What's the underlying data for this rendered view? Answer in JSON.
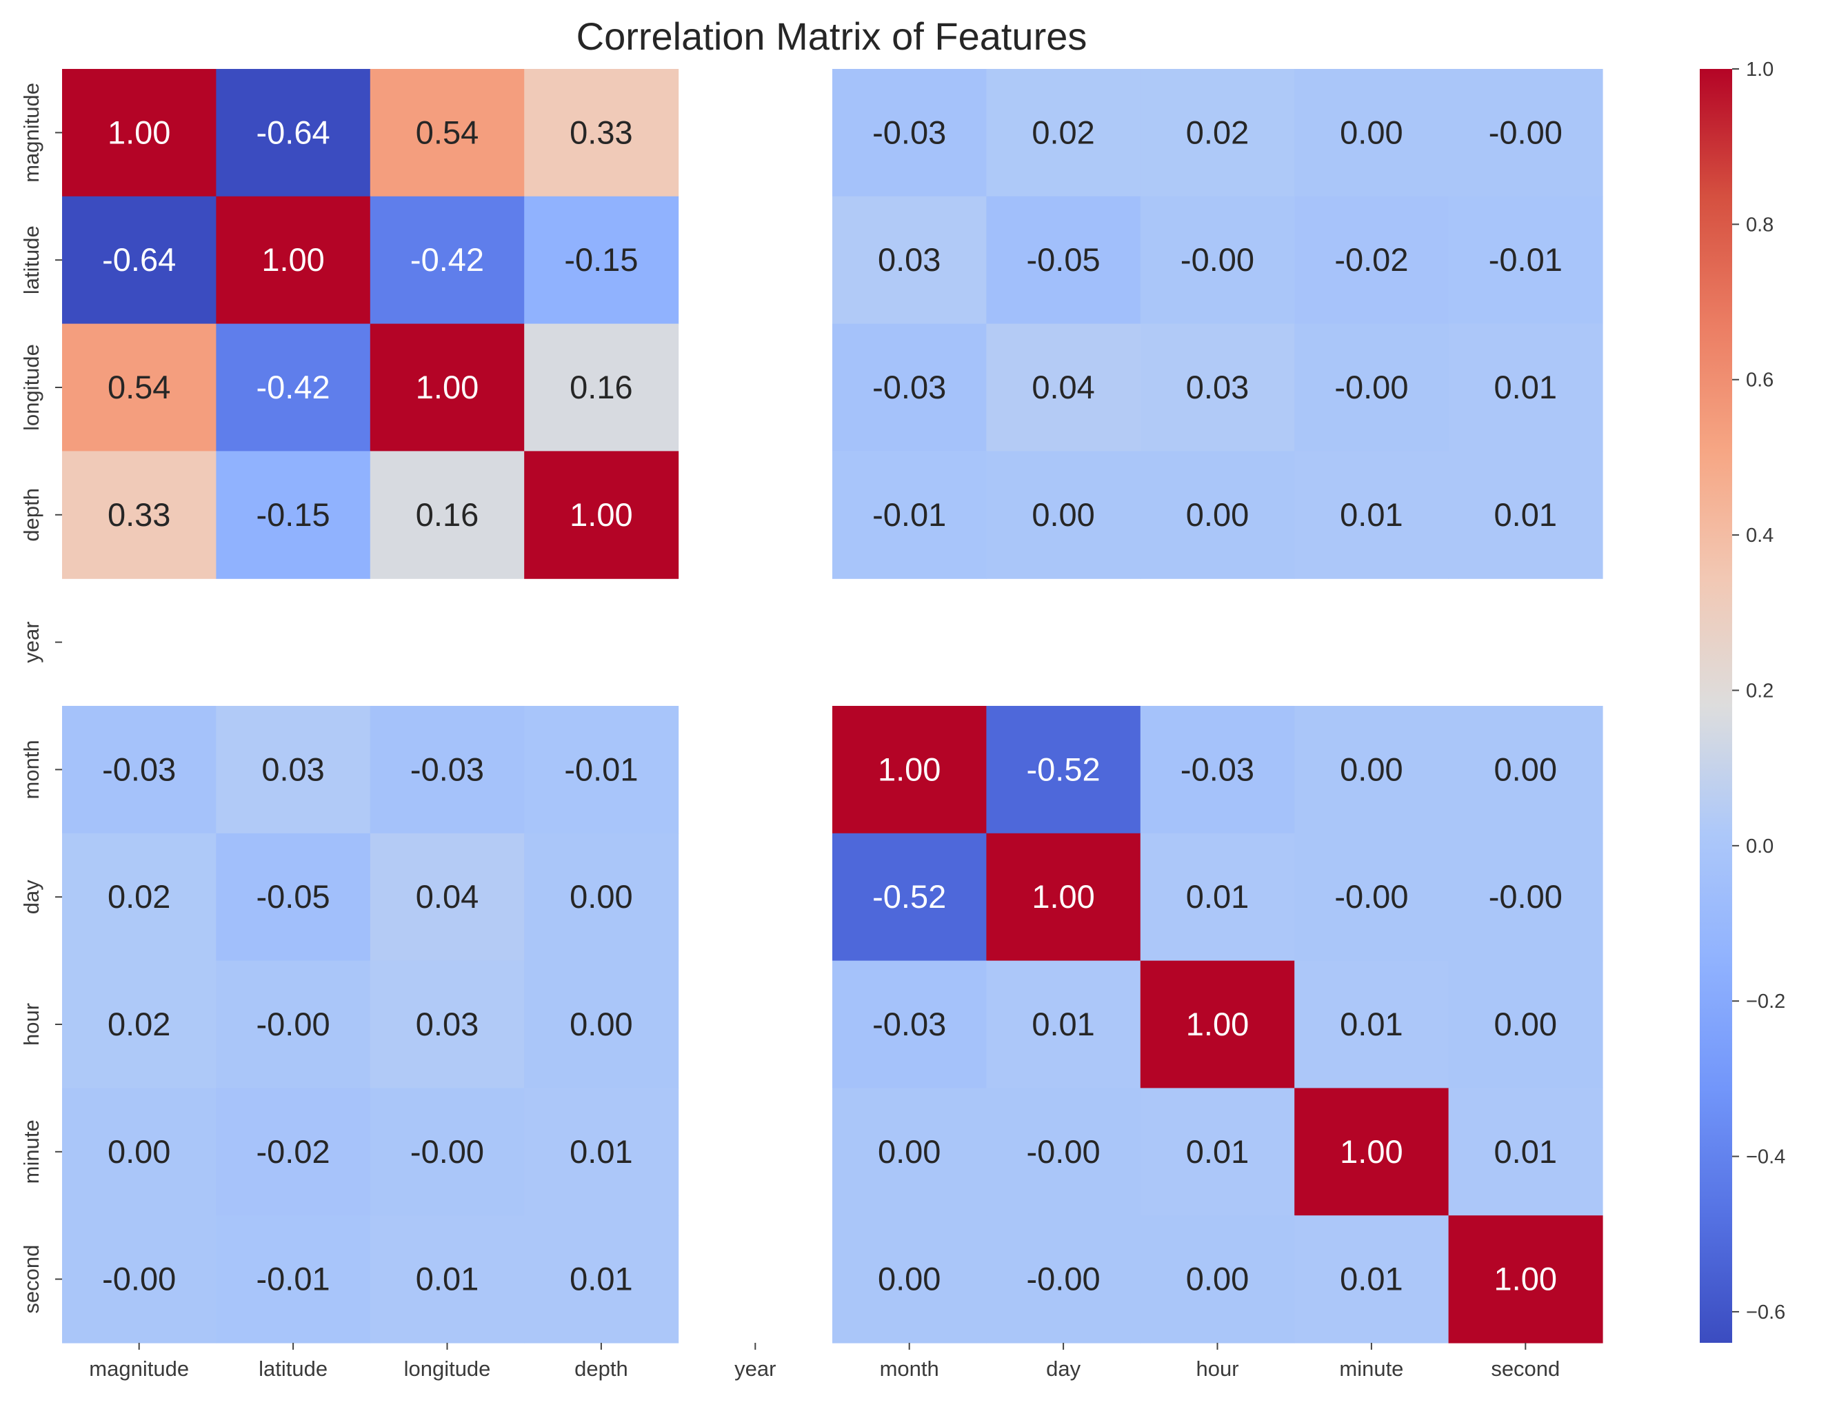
{
  "chart_data": {
    "type": "heatmap",
    "title": "Correlation Matrix of Features",
    "xlabel": "",
    "ylabel": "",
    "labels": [
      "magnitude",
      "latitude",
      "longitude",
      "depth",
      "year",
      "month",
      "day",
      "hour",
      "minute",
      "second"
    ],
    "x_tick_labels": [
      "magnitude",
      "latitude",
      "longitude",
      "depth",
      "year",
      "month",
      "day",
      "hour",
      "minute",
      "second"
    ],
    "y_tick_labels": [
      "magnitude",
      "latitude",
      "longitude",
      "depth",
      "year",
      "month",
      "day",
      "hour",
      "minute",
      "second"
    ],
    "matrix": [
      [
        1.0,
        -0.64,
        0.54,
        0.33,
        null,
        -0.03,
        0.02,
        0.02,
        0.0,
        -0.0
      ],
      [
        -0.64,
        1.0,
        -0.42,
        -0.15,
        null,
        0.03,
        -0.05,
        -0.0,
        -0.02,
        -0.01
      ],
      [
        0.54,
        -0.42,
        1.0,
        0.16,
        null,
        -0.03,
        0.04,
        0.03,
        -0.0,
        0.01
      ],
      [
        0.33,
        -0.15,
        0.16,
        1.0,
        null,
        -0.01,
        0.0,
        0.0,
        0.01,
        0.01
      ],
      [
        null,
        null,
        null,
        null,
        null,
        null,
        null,
        null,
        null,
        null
      ],
      [
        -0.03,
        0.03,
        -0.03,
        -0.01,
        null,
        1.0,
        -0.52,
        -0.03,
        0.0,
        0.0
      ],
      [
        0.02,
        -0.05,
        0.04,
        0.0,
        null,
        -0.52,
        1.0,
        0.01,
        -0.0,
        -0.0
      ],
      [
        0.02,
        -0.0,
        0.03,
        0.0,
        null,
        -0.03,
        0.01,
        1.0,
        0.01,
        0.0
      ],
      [
        0.0,
        -0.02,
        -0.0,
        0.01,
        null,
        0.0,
        -0.0,
        0.01,
        1.0,
        0.01
      ],
      [
        -0.0,
        -0.01,
        0.01,
        0.01,
        null,
        0.0,
        -0.0,
        0.0,
        0.01,
        1.0
      ]
    ],
    "annotations": [
      [
        "1.00",
        "-0.64",
        "0.54",
        "0.33",
        "",
        "-0.03",
        "0.02",
        "0.02",
        "0.00",
        "-0.00"
      ],
      [
        "-0.64",
        "1.00",
        "-0.42",
        "-0.15",
        "",
        "0.03",
        "-0.05",
        "-0.00",
        "-0.02",
        "-0.01"
      ],
      [
        "0.54",
        "-0.42",
        "1.00",
        "0.16",
        "",
        "-0.03",
        "0.04",
        "0.03",
        "-0.00",
        "0.01"
      ],
      [
        "0.33",
        "-0.15",
        "0.16",
        "1.00",
        "",
        "-0.01",
        "0.00",
        "0.00",
        "0.01",
        "0.01"
      ],
      [
        "",
        "",
        "",
        "",
        "",
        "",
        "",
        "",
        "",
        ""
      ],
      [
        "-0.03",
        "0.03",
        "-0.03",
        "-0.01",
        "",
        "1.00",
        "-0.52",
        "-0.03",
        "0.00",
        "0.00"
      ],
      [
        "0.02",
        "-0.05",
        "0.04",
        "0.00",
        "",
        "-0.52",
        "1.00",
        "0.01",
        "-0.00",
        "-0.00"
      ],
      [
        "0.02",
        "-0.00",
        "0.03",
        "0.00",
        "",
        "-0.03",
        "0.01",
        "1.00",
        "0.01",
        "0.00"
      ],
      [
        "0.00",
        "-0.02",
        "-0.00",
        "0.01",
        "",
        "0.00",
        "-0.00",
        "0.01",
        "1.00",
        "0.01"
      ],
      [
        "-0.00",
        "-0.01",
        "0.01",
        "0.01",
        "",
        "0.00",
        "-0.00",
        "0.00",
        "0.01",
        "1.00"
      ]
    ],
    "colormap": "coolwarm",
    "colorbar": {
      "range": [
        -0.64,
        1.0
      ],
      "ticks": [
        1.0,
        0.8,
        0.6,
        0.4,
        0.2,
        0.0,
        -0.2,
        -0.4,
        -0.6
      ],
      "tick_labels": [
        "1.0",
        "0.8",
        "0.6",
        "0.4",
        "0.2",
        "0.0",
        "−0.2",
        "−0.4",
        "−0.6"
      ],
      "placement": "right"
    },
    "grid": false,
    "legend": "none"
  },
  "colors": {
    "cmap_low": "#3b4cc0",
    "cmap_mid": "#dddddd",
    "cmap_high": "#b40426",
    "text_dark": "#262626",
    "text_light": "#ffffff"
  }
}
